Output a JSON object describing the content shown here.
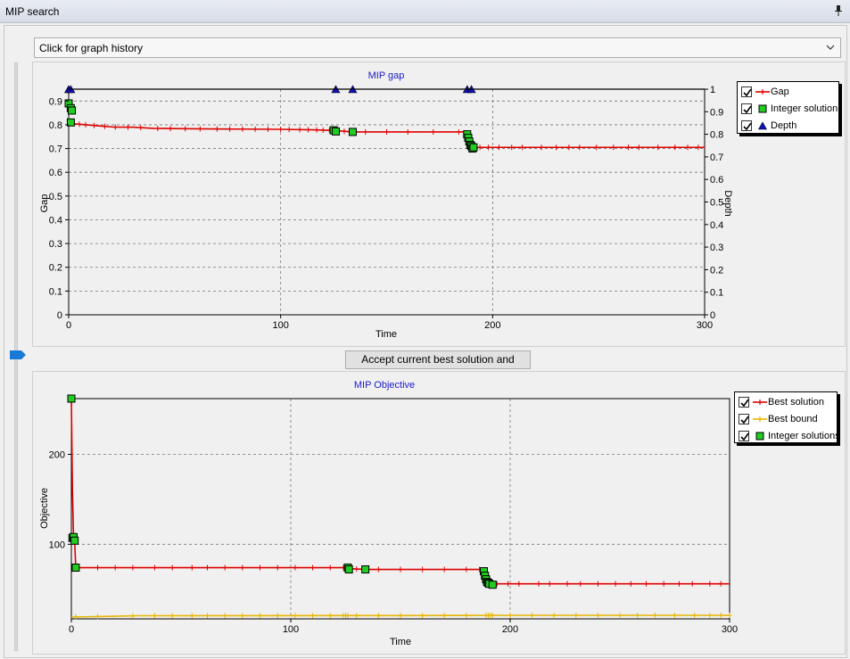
{
  "window": {
    "title": "MIP search",
    "pin_icon": "pin-icon"
  },
  "history_combo": {
    "text": "Click for graph history"
  },
  "accept_button": {
    "label": "Accept current best solution and continue"
  },
  "colors": {
    "gap": "#e00000",
    "integer": "#22cc22",
    "depth": "#1010c0",
    "bound": "#e6b400",
    "title": "#1a1ad0"
  },
  "gap_legend": {
    "items": [
      {
        "label": "Gap",
        "checked": true,
        "symbol": "line-plus"
      },
      {
        "label": "Integer solution",
        "checked": true,
        "symbol": "green-square"
      },
      {
        "label": "Depth",
        "checked": true,
        "symbol": "blue-triangle"
      }
    ]
  },
  "obj_legend": {
    "items": [
      {
        "label": "Best solution",
        "checked": true,
        "symbol": "line-plus"
      },
      {
        "label": "Best bound",
        "checked": true,
        "symbol": "yellow-line-plus"
      },
      {
        "label": "Integer solutions",
        "checked": true,
        "symbol": "green-square"
      }
    ]
  },
  "chart_data": [
    {
      "type": "line",
      "title": "MIP gap",
      "xlabel": "Time",
      "ylabel": "Gap",
      "y2label": "Depth",
      "xlim": [
        0,
        300
      ],
      "ylim": [
        0,
        0.95
      ],
      "y2lim": [
        0,
        1
      ],
      "xticks": [
        "0",
        "100",
        "200",
        "300"
      ],
      "yticks": [
        "0",
        "0.1",
        "0.2",
        "0.3",
        "0.4",
        "0.5",
        "0.6",
        "0.7",
        "0.8",
        "0.9"
      ],
      "y2ticks": [
        "0",
        "0.1",
        "0.2",
        "0.3",
        "0.4",
        "0.5",
        "0.6",
        "0.7",
        "0.8",
        "0.9",
        "1"
      ],
      "grid": true,
      "legend": "right",
      "series": [
        {
          "name": "Gap",
          "points": [
            [
              0,
              0.81
            ],
            [
              2,
              0.805
            ],
            [
              8,
              0.8
            ],
            [
              15,
              0.795
            ],
            [
              22,
              0.79
            ],
            [
              30,
              0.79
            ],
            [
              40,
              0.785
            ],
            [
              60,
              0.783
            ],
            [
              80,
              0.782
            ],
            [
              100,
              0.781
            ],
            [
              115,
              0.779
            ],
            [
              125,
              0.776
            ],
            [
              134,
              0.77
            ],
            [
              150,
              0.77
            ],
            [
              170,
              0.77
            ],
            [
              188,
              0.77
            ],
            [
              188,
              0.755
            ],
            [
              189,
              0.74
            ],
            [
              189.5,
              0.72
            ],
            [
              190,
              0.71
            ],
            [
              192,
              0.705
            ],
            [
              220,
              0.705
            ],
            [
              260,
              0.705
            ],
            [
              300,
              0.705
            ]
          ]
        },
        {
          "name": "Integer solution",
          "points": [
            [
              0,
              0.89
            ],
            [
              1,
              0.87
            ],
            [
              1.5,
              0.86
            ],
            [
              1,
              0.81
            ],
            [
              125,
              0.777
            ],
            [
              126,
              0.772
            ],
            [
              134,
              0.77
            ],
            [
              188,
              0.76
            ],
            [
              188.5,
              0.745
            ],
            [
              189,
              0.73
            ],
            [
              189.5,
              0.715
            ],
            [
              190,
              0.71
            ],
            [
              190.5,
              0.7
            ],
            [
              191,
              0.705
            ]
          ]
        },
        {
          "name": "Depth",
          "points": [
            [
              0,
              1
            ],
            [
              1,
              1
            ],
            [
              126,
              1
            ],
            [
              134,
              1
            ],
            [
              188,
              1
            ],
            [
              190,
              1
            ]
          ]
        }
      ]
    },
    {
      "type": "line",
      "title": "MIP Objective",
      "xlabel": "Time",
      "ylabel": "Objective",
      "xlim": [
        0,
        300
      ],
      "ylim": [
        17,
        262
      ],
      "xticks": [
        "0",
        "100",
        "200",
        "300"
      ],
      "yticks": [
        "100",
        "200"
      ],
      "grid": true,
      "legend": "right",
      "series": [
        {
          "name": "Best solution",
          "points": [
            [
              0,
              262
            ],
            [
              0.5,
              160
            ],
            [
              1,
              108
            ],
            [
              1.5,
              104
            ],
            [
              2,
              74
            ],
            [
              20,
              74
            ],
            [
              60,
              74
            ],
            [
              100,
              74
            ],
            [
              125,
              74
            ],
            [
              126,
              73
            ],
            [
              134,
              72
            ],
            [
              160,
              72
            ],
            [
              188,
              72
            ],
            [
              188,
              68
            ],
            [
              189,
              64
            ],
            [
              190,
              60
            ],
            [
              191,
              57
            ],
            [
              192,
              56
            ],
            [
              220,
              56
            ],
            [
              260,
              56
            ],
            [
              300,
              56
            ]
          ]
        },
        {
          "name": "Best bound",
          "points": [
            [
              0,
              19
            ],
            [
              10,
              19.5
            ],
            [
              30,
              20.5
            ],
            [
              80,
              20.6
            ],
            [
              150,
              20.7
            ],
            [
              200,
              21
            ],
            [
              300,
              21
            ]
          ]
        },
        {
          "name": "Integer solutions",
          "points": [
            [
              0,
              262
            ],
            [
              0.5,
              107
            ],
            [
              1,
              108
            ],
            [
              1.5,
              104
            ],
            [
              2,
              74
            ],
            [
              126,
              74
            ],
            [
              126.5,
              72
            ],
            [
              134,
              72
            ],
            [
              188,
              70
            ],
            [
              188.5,
              65
            ],
            [
              189,
              61
            ],
            [
              189.5,
              58
            ],
            [
              190,
              57
            ],
            [
              190.5,
              56
            ],
            [
              192,
              55
            ]
          ]
        }
      ]
    }
  ]
}
